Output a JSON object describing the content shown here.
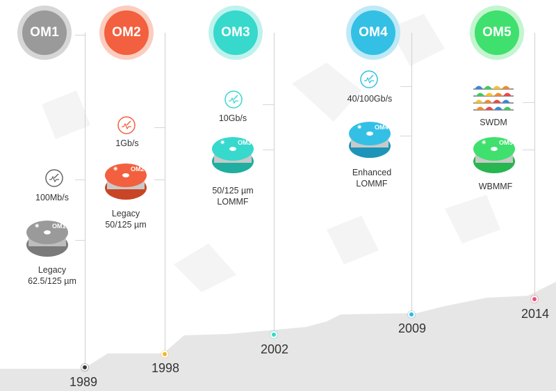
{
  "generations": [
    {
      "id": "om1",
      "badge": "OM1",
      "color": "#9a9a9a",
      "ring": "#d6d6d6",
      "year": "1989",
      "spool_label": "OM1",
      "speed": "100Mb/s",
      "speed_icon": "speedometer-icon",
      "fiber_lines": [
        "Legacy",
        "62.5/125 µm"
      ]
    },
    {
      "id": "om2",
      "badge": "OM2",
      "color": "#f2603f",
      "ring": "#fbcdbf",
      "year": "1998",
      "spool_label": "OM2",
      "speed": "1Gb/s",
      "speed_icon": "speedometer-icon",
      "fiber_lines": [
        "Legacy",
        "50/125 µm"
      ]
    },
    {
      "id": "om3",
      "badge": "OM3",
      "color": "#36d9cc",
      "ring": "#bff2ed",
      "year": "2002",
      "spool_label": "OM3",
      "speed": "10Gb/s",
      "speed_icon": "speedometer-icon",
      "fiber_lines": [
        "50/125 µm",
        "LOMMF"
      ]
    },
    {
      "id": "om4",
      "badge": "OM4",
      "color": "#33c0e4",
      "ring": "#bfe9f6",
      "year": "2009",
      "spool_label": "OM4",
      "speed": "40/100Gb/s",
      "speed_icon": "speedometer-icon",
      "fiber_lines": [
        "Enhanced",
        "LOMMF"
      ]
    },
    {
      "id": "om5",
      "badge": "OM5",
      "color": "#3fe06e",
      "ring": "#c4f5d0",
      "year": "2014",
      "spool_label": "OM5",
      "speed": "SWDM",
      "speed_icon": "wavelength-spectrum-icon",
      "fiber_lines": [
        "WBMMF"
      ]
    }
  ],
  "timeline_dot_colors": [
    "#3a3a3a",
    "#f5b52a",
    "#36d9cc",
    "#33b6e4",
    "#e8507a"
  ],
  "spectrum_colors": [
    "#3a86d8",
    "#43c95c",
    "#f0c330",
    "#f08a2c",
    "#e84848"
  ]
}
